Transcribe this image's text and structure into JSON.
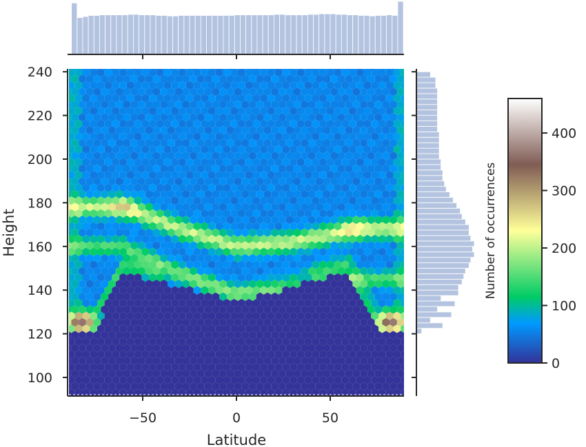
{
  "chart_data": {
    "type": "heatmap",
    "subtype": "hexbin jointplot with marginal histograms",
    "xlabel": "Latitude",
    "ylabel": "Height",
    "x_tick_labels": [
      "−50",
      "0",
      "50"
    ],
    "x_ticks": [
      -50,
      0,
      50
    ],
    "y_tick_labels": [
      "100",
      "120",
      "140",
      "160",
      "180",
      "200",
      "220",
      "240"
    ],
    "y_ticks": [
      100,
      120,
      140,
      160,
      180,
      200,
      220,
      240
    ],
    "xlim": [
      -90,
      90
    ],
    "ylim": [
      91,
      241
    ],
    "colormap": "terrain",
    "colorbar": {
      "label": "Number of occurrences",
      "range": [
        0,
        460
      ],
      "ticks": [
        0,
        100,
        200,
        300,
        400
      ],
      "tick_labels": [
        "0",
        "100",
        "200",
        "300",
        "400"
      ],
      "placement": "right"
    },
    "description_structure": {
      "ground_mask_height_mid_latitudes": 135,
      "ground_mask_height_poles": 122,
      "ridge_upper": [
        [
          -60,
          178
        ],
        [
          -30,
          168
        ],
        [
          0,
          160
        ],
        [
          30,
          162
        ],
        [
          65,
          168
        ]
      ],
      "ridge_lower": [
        [
          -60,
          160
        ],
        [
          -30,
          148
        ],
        [
          0,
          138
        ],
        [
          30,
          140
        ],
        [
          65,
          145
        ]
      ]
    },
    "marginal_x": {
      "bin_edges_start": -88,
      "bin_width": 3,
      "counts": [
        95,
        68,
        70,
        72,
        72,
        73,
        73,
        73,
        73,
        73,
        74,
        74,
        73,
        73,
        73,
        72,
        72,
        71,
        71,
        72,
        72,
        72,
        72,
        72,
        72,
        72,
        72,
        72,
        72,
        73,
        73,
        73,
        73,
        73,
        73,
        73,
        74,
        74,
        73,
        73,
        73,
        73,
        74,
        74,
        75,
        75,
        75,
        74,
        74,
        73,
        73,
        72,
        72,
        71,
        72,
        72,
        73,
        72,
        98
      ]
    },
    "marginal_y": {
      "bin_edges_start": 120,
      "bin_width": 2.5,
      "counts": [
        3,
        15,
        8,
        20,
        12,
        22,
        14,
        24,
        24,
        26,
        27,
        28,
        30,
        31,
        33,
        32,
        33,
        31,
        30,
        30,
        28,
        26,
        25,
        23,
        21,
        19,
        17,
        16,
        15,
        15,
        14,
        14,
        13,
        13,
        13,
        13,
        13,
        12,
        12,
        12,
        12,
        12,
        12,
        12,
        12,
        11,
        11,
        8
      ]
    },
    "grid": false
  },
  "colors": {
    "background": "#ffffff",
    "axis": "#262626",
    "marginal_fill": "#b4c4e0",
    "marginal_edge": "#ffffff",
    "colormap_stops": [
      "#333399",
      "#0099ff",
      "#00cc66",
      "#ffff99",
      "#805c54",
      "#ffffff"
    ]
  }
}
